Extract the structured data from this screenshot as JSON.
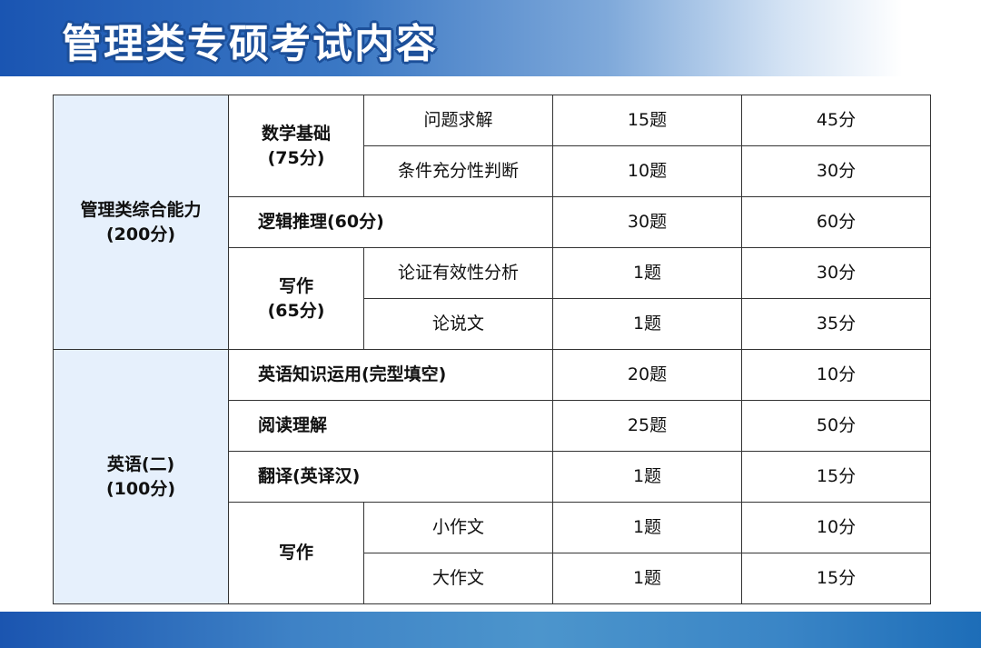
{
  "title": "管理类专硕考试内容",
  "sections": [
    {
      "name": "管理类综合能力",
      "score": "(200分)",
      "groups": [
        {
          "name": "数学基础",
          "score": "(75分)",
          "rows": [
            {
              "item": "问题求解",
              "count": "15题",
              "points": "45分"
            },
            {
              "item": "条件充分性判断",
              "count": "10题",
              "points": "30分"
            }
          ]
        },
        {
          "name": "逻辑推理(60分)",
          "rows": [
            {
              "count": "30题",
              "points": "60分"
            }
          ]
        },
        {
          "name": "写作",
          "score": "(65分)",
          "rows": [
            {
              "item": "论证有效性分析",
              "count": "1题",
              "points": "30分"
            },
            {
              "item": "论说文",
              "count": "1题",
              "points": "35分"
            }
          ]
        }
      ]
    },
    {
      "name": "英语(二)",
      "score": "(100分)",
      "groups": [
        {
          "name": "英语知识运用(完型填空)",
          "rows": [
            {
              "count": "20题",
              "points": "10分"
            }
          ]
        },
        {
          "name": "阅读理解",
          "rows": [
            {
              "count": "25题",
              "points": "50分"
            }
          ]
        },
        {
          "name": "翻译(英译汉)",
          "rows": [
            {
              "count": "1题",
              "points": "15分"
            }
          ]
        },
        {
          "name": "写作",
          "rows": [
            {
              "item": "小作文",
              "count": "1题",
              "points": "10分"
            },
            {
              "item": "大作文",
              "count": "1题",
              "points": "15分"
            }
          ]
        }
      ]
    }
  ]
}
